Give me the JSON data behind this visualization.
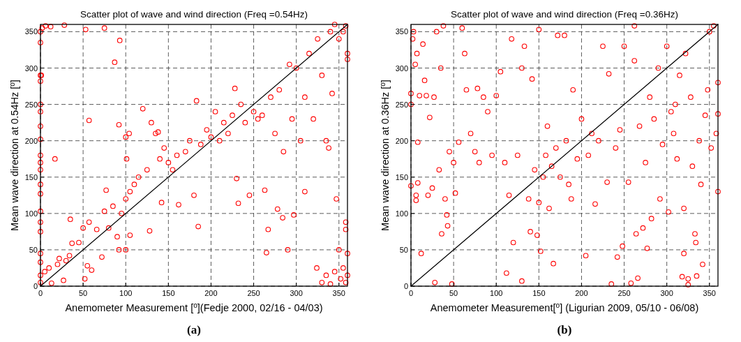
{
  "chart_data": [
    {
      "type": "scatter",
      "title": "Scatter plot of wave and wind direction (Freq =0.54Hz)",
      "xlabel": "Anemometer Measurement [$^{o}$](Fedje 2000, 02/16 - 04/03)",
      "ylabel": "Mean wave direction at 0.54Hz [$^{o}$]",
      "annotations": [
        "(a)"
      ],
      "xlim": [
        0,
        360
      ],
      "ylim": [
        0,
        360
      ],
      "xticks": [
        0,
        50,
        100,
        150,
        200,
        250,
        300,
        350
      ],
      "yticks": [
        0,
        50,
        100,
        150,
        200,
        250,
        300,
        350
      ],
      "grid": true,
      "series": [
        {
          "marker": "circle",
          "color": "#ff0000",
          "x": [
            0,
            0,
            0,
            0,
            0,
            0,
            0,
            0,
            0,
            0,
            0,
            0,
            0,
            0,
            0,
            0,
            0,
            0,
            0,
            0,
            1,
            2,
            6,
            12,
            28,
            53,
            75,
            87,
            93,
            5,
            10,
            13,
            17,
            20,
            22,
            27,
            30,
            34,
            35,
            37,
            45,
            50,
            52,
            55,
            57,
            60,
            57,
            66,
            72,
            75,
            77,
            80,
            85,
            90,
            92,
            92,
            100,
            101,
            100,
            104,
            105,
            95,
            100,
            105,
            110,
            115,
            120,
            125,
            130,
            128,
            135,
            138,
            140,
            142,
            145,
            150,
            155,
            160,
            162,
            170,
            175,
            180,
            183,
            185,
            188,
            195,
            200,
            205,
            210,
            215,
            220,
            225,
            228,
            230,
            232,
            235,
            240,
            245,
            250,
            255,
            260,
            263,
            265,
            267,
            270,
            275,
            278,
            280,
            284,
            285,
            290,
            292,
            295,
            297,
            300,
            305,
            310,
            310,
            315,
            320,
            325,
            330,
            335,
            338,
            340,
            342,
            345,
            347,
            350,
            355,
            358,
            360,
            360,
            324,
            330,
            335,
            340,
            345,
            350,
            352,
            355,
            358,
            360,
            358,
            358,
            360
          ],
          "values": [
            350,
            335,
            290,
            282,
            250,
            240,
            220,
            202,
            180,
            170,
            160,
            140,
            127,
            103,
            88,
            75,
            45,
            33,
            15,
            5,
            290,
            355,
            358,
            357,
            359,
            353,
            355,
            308,
            338,
            20,
            25,
            4,
            175,
            30,
            38,
            8,
            35,
            42,
            92,
            59,
            60,
            80,
            10,
            28,
            88,
            22,
            228,
            78,
            40,
            103,
            132,
            80,
            110,
            68,
            50,
            222,
            50,
            175,
            205,
            210,
            70,
            100,
            120,
            130,
            140,
            150,
            244,
            160,
            225,
            76,
            210,
            212,
            175,
            115,
            190,
            170,
            160,
            180,
            112,
            185,
            200,
            125,
            255,
            82,
            195,
            215,
            205,
            240,
            200,
            225,
            210,
            235,
            272,
            148,
            114,
            250,
            225,
            125,
            240,
            230,
            235,
            132,
            46,
            78,
            260,
            210,
            106,
            270,
            94,
            185,
            50,
            305,
            230,
            98,
            300,
            200,
            130,
            260,
            320,
            230,
            340,
            290,
            200,
            190,
            350,
            265,
            360,
            120,
            340,
            350,
            358,
            320,
            312,
            25,
            5,
            15,
            3,
            20,
            50,
            10,
            25,
            5,
            45,
            88,
            78,
            15
          ]
        },
        {
          "type": "line",
          "marker": "none",
          "color": "#000000",
          "x": [
            0,
            360
          ],
          "values": [
            0,
            360
          ]
        }
      ]
    },
    {
      "type": "scatter",
      "title": "Scatter plot of wave and wind direction (Freq =0.36Hz)",
      "xlabel": "Anemometer Measurement[$^{o}$] (Ligurian 2009, 05/10 - 06/08)",
      "ylabel": "Mean wave direction at 0.36Hz [$^{o}$]",
      "annotations": [
        "(b)"
      ],
      "xlim": [
        0,
        360
      ],
      "ylim": [
        0,
        360
      ],
      "xticks": [
        0,
        50,
        100,
        150,
        200,
        250,
        300,
        350
      ],
      "yticks": [
        0,
        50,
        100,
        150,
        200,
        250,
        300,
        350
      ],
      "grid": true,
      "series": [
        {
          "marker": "circle",
          "color": "#ff0000",
          "x": [
            0,
            0,
            0,
            2,
            3,
            5,
            7,
            8,
            8,
            6,
            6,
            10,
            12,
            14,
            16,
            18,
            20,
            22,
            25,
            27,
            28,
            30,
            33,
            35,
            36,
            38,
            40,
            42,
            43,
            45,
            48,
            50,
            52,
            56,
            60,
            63,
            65,
            70,
            75,
            78,
            80,
            85,
            90,
            95,
            100,
            105,
            110,
            112,
            115,
            118,
            120,
            125,
            130,
            130,
            133,
            138,
            140,
            142,
            145,
            148,
            150,
            150,
            152,
            155,
            158,
            160,
            162,
            165,
            167,
            170,
            172,
            175,
            180,
            182,
            185,
            188,
            190,
            195,
            200,
            205,
            208,
            212,
            216,
            220,
            225,
            230,
            232,
            235,
            240,
            242,
            245,
            248,
            250,
            255,
            258,
            262,
            264,
            266,
            262,
            268,
            272,
            275,
            277,
            280,
            282,
            285,
            290,
            292,
            295,
            300,
            302,
            305,
            308,
            310,
            312,
            315,
            318,
            320,
            320,
            322,
            325,
            325,
            328,
            330,
            333,
            334,
            335,
            338,
            340,
            342,
            345,
            348,
            350,
            352,
            355,
            358,
            360,
            360,
            360
          ],
          "values": [
            138,
            250,
            265,
            340,
            350,
            305,
            320,
            198,
            142,
            118,
            125,
            262,
            45,
            333,
            283,
            262,
            125,
            232,
            135,
            260,
            5,
            350,
            160,
            300,
            72,
            358,
            120,
            98,
            83,
            185,
            3,
            170,
            128,
            198,
            355,
            320,
            270,
            210,
            185,
            272,
            170,
            260,
            240,
            180,
            262,
            295,
            170,
            18,
            125,
            340,
            60,
            180,
            300,
            7,
            330,
            120,
            75,
            285,
            160,
            70,
            353,
            115,
            48,
            150,
            180,
            220,
            107,
            165,
            31,
            190,
            345,
            150,
            345,
            200,
            140,
            120,
            270,
            175,
            230,
            42,
            180,
            210,
            113,
            200,
            330,
            143,
            292,
            3,
            190,
            40,
            215,
            55,
            330,
            143,
            4,
            310,
            72,
            11,
            358,
            220,
            80,
            170,
            52,
            260,
            93,
            230,
            300,
            120,
            195,
            330,
            102,
            240,
            210,
            250,
            175,
            290,
            13,
            45,
            107,
            320,
            10,
            2,
            260,
            165,
            72,
            60,
            14,
            200,
            140,
            30,
            235,
            270,
            350,
            190,
            358,
            210,
            130,
            280,
            237
          ]
        },
        {
          "type": "line",
          "marker": "none",
          "color": "#000000",
          "x": [
            0,
            360
          ],
          "values": [
            0,
            360
          ]
        }
      ]
    }
  ]
}
